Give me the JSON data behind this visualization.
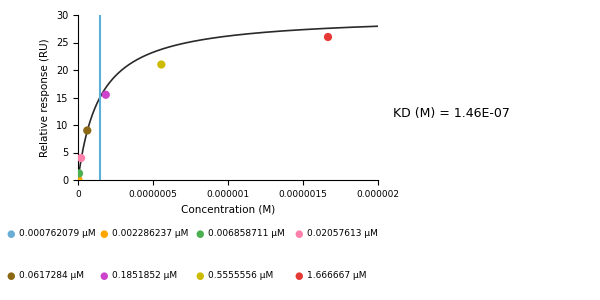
{
  "ylabel": "Relative response (RU)",
  "xlabel": "Concentration (M)",
  "kd_text": "KD (M) = 1.46E-07",
  "kd_value": 1.46e-07,
  "rmax": 30.0,
  "xlim": [
    0,
    2e-06
  ],
  "ylim": [
    0,
    30
  ],
  "vline_color": "#5BAFD6",
  "fit_color": "#2a2a2a",
  "data_points": [
    {
      "conc_M": 7.62079e-10,
      "response": 0.05,
      "color": "#6aaed6"
    },
    {
      "conc_M": 2.286237e-09,
      "response": 0.1,
      "color": "#FFA500"
    },
    {
      "conc_M": 6.858711e-09,
      "response": 1.2,
      "color": "#4CAF50"
    },
    {
      "conc_M": 2.057613e-08,
      "response": 4.0,
      "color": "#FF80AB"
    },
    {
      "conc_M": 6.17284e-08,
      "response": 9.0,
      "color": "#8B6914"
    },
    {
      "conc_M": 1.851852e-07,
      "response": 15.5,
      "color": "#CC44CC"
    },
    {
      "conc_M": 5.555556e-07,
      "response": 21.0,
      "color": "#CCBB00"
    },
    {
      "conc_M": 1.666667e-06,
      "response": 26.0,
      "color": "#E53935"
    }
  ],
  "legend_entries": [
    {
      "label": "0.000762079 μM",
      "color": "#6aaed6"
    },
    {
      "label": "0.002286237 μM",
      "color": "#FFA500"
    },
    {
      "label": "0.006858711 μM",
      "color": "#4CAF50"
    },
    {
      "label": "0.02057613 μM",
      "color": "#FF80AB"
    },
    {
      "label": "0.0617284 μM",
      "color": "#8B6914"
    },
    {
      "label": "0.1851852 μM",
      "color": "#CC44CC"
    },
    {
      "label": "0.5555556 μM",
      "color": "#CCBB00"
    },
    {
      "label": "1.666667 μM",
      "color": "#E53935"
    }
  ],
  "background_color": "#ffffff",
  "xticks": [
    0,
    5e-07,
    1e-06,
    1.5e-06,
    2e-06
  ],
  "xtick_labels": [
    "0",
    "0.0000005",
    "0.000001",
    "0.0000015",
    "0.000002"
  ]
}
